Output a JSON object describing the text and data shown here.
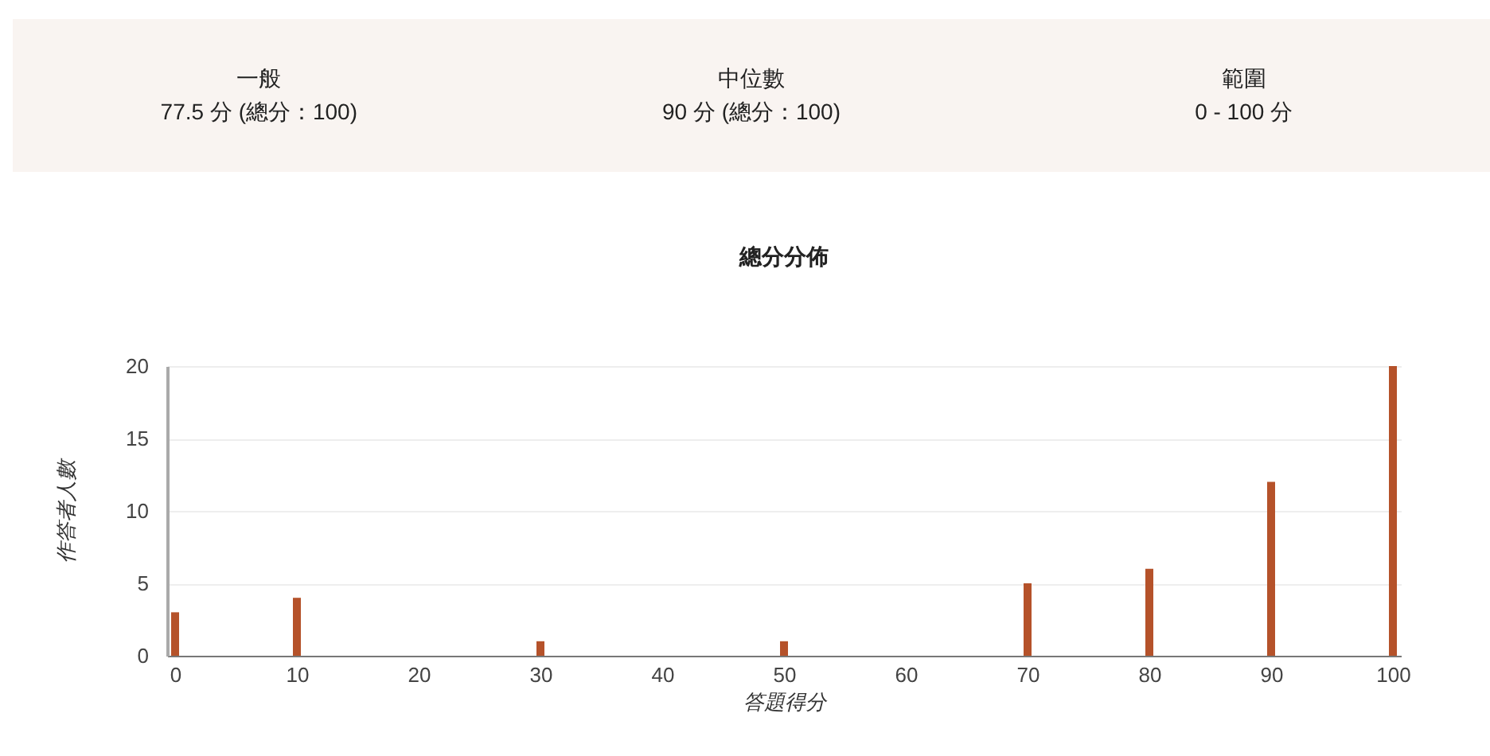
{
  "chart_data": [
    {
      "type": "other",
      "annotations": [
        "一般",
        "77.5 分 (總分：100)",
        "中位數",
        "90 分 (總分：100)",
        "範圍",
        "0 - 100 分"
      ]
    },
    {
      "type": "bar",
      "title": "總分分佈",
      "xlabel": "答題得分",
      "ylabel": "作答者人數",
      "x": [
        0,
        10,
        30,
        50,
        70,
        80,
        90,
        100
      ],
      "values": [
        3,
        4,
        1,
        1,
        5,
        6,
        12,
        20
      ],
      "color": "#b5522a",
      "xlim": [
        0,
        100
      ],
      "xticks": [
        0,
        10,
        20,
        30,
        40,
        50,
        60,
        70,
        80,
        90,
        100
      ],
      "ylim": [
        0,
        20
      ],
      "yticks": [
        0,
        5,
        10,
        15,
        20
      ],
      "grid": "y"
    }
  ]
}
